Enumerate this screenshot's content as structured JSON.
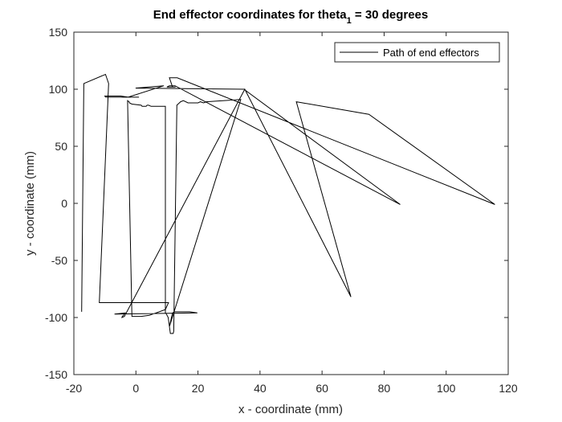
{
  "chart_data": {
    "type": "line",
    "title": {
      "main": "End effector coordinates for theta",
      "subscript": "1",
      "suffix": " = 30 degrees"
    },
    "xlabel": "x - coordinate (mm)",
    "ylabel": "y - coordinate (mm)",
    "xlim": [
      -20,
      120
    ],
    "ylim": [
      -150,
      150
    ],
    "xticks": [
      -20,
      0,
      20,
      40,
      60,
      80,
      100,
      120
    ],
    "yticks": [
      -150,
      -100,
      -50,
      0,
      50,
      100,
      150
    ],
    "grid": false,
    "legend_position": "top-right",
    "line_color": "#000000",
    "series": [
      {
        "name": "Path of end effectors",
        "x": [
          -17.5,
          -16.8,
          -9.8,
          -8.8,
          -11.8,
          10.5,
          9.5,
          8.5,
          6.5,
          4.3,
          1.7,
          -1.3,
          -2.7,
          -2.2,
          -2.1,
          -1.3,
          1.7,
          2.0,
          3.3,
          3.6,
          4.1,
          4.9,
          9.5,
          9.5,
          9.8,
          10.4,
          11.1,
          12.0,
          12.2,
          13.2,
          14.4,
          15.3,
          16.8,
          20.0,
          20.8,
          21.8,
          22.7,
          33.8,
          10.8,
          11.8,
          12.5,
          17.3,
          19.8,
          -6.9,
          -3.2,
          -4.4,
          -4.5,
          -3.7,
          35.1,
          69.3,
          51.7,
          75.1,
          115.7,
          13.3,
          10.8,
          11.8,
          12.8,
          10.0,
          10.8,
          12.6,
          85.2,
          34.8,
          -0.1,
          -0.1,
          9.0,
          -2.5,
          -9.7,
          -10.0,
          -9.5,
          -8.7,
          -7.4,
          -6.3,
          -5.6,
          -4.9,
          -2.4,
          -0.9,
          1.0
        ],
        "y": [
          -95,
          105,
          113,
          105,
          -87,
          -87,
          -93,
          -94,
          -96,
          -98,
          -99,
          -99,
          90,
          89,
          88,
          87,
          86,
          85,
          85,
          86,
          86,
          85,
          85,
          -96,
          -97,
          -100,
          -114,
          -114,
          -112,
          86,
          89,
          90,
          88,
          88,
          89,
          88,
          89,
          91,
          -108,
          -96,
          -95,
          -95,
          -96,
          -97,
          -96,
          -99,
          -100,
          -99,
          100,
          -82,
          89,
          78,
          -1,
          110,
          110,
          102,
          102,
          102,
          103,
          103,
          -1,
          100,
          101,
          101,
          103,
          93,
          93,
          94,
          94,
          94,
          94,
          94,
          94,
          94,
          93,
          93,
          93
        ]
      }
    ]
  }
}
